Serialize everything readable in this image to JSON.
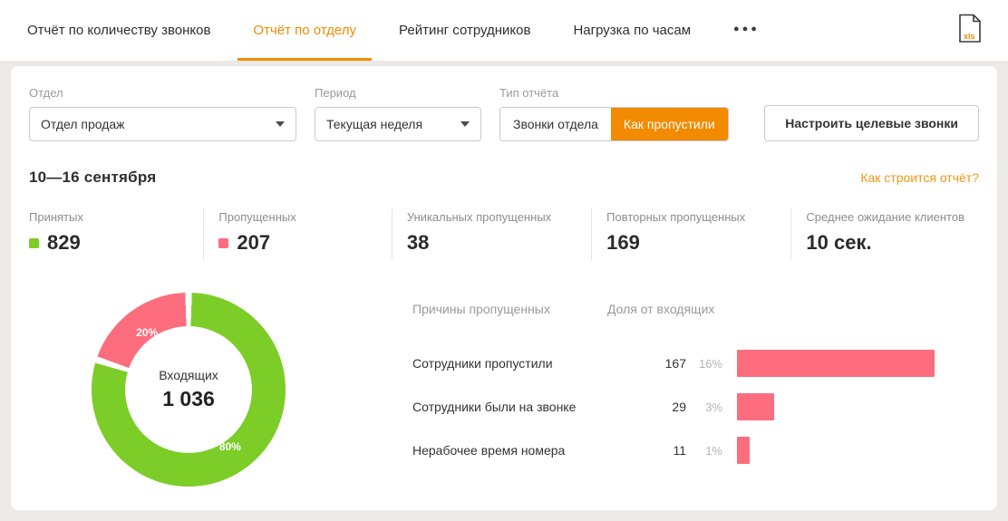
{
  "colors": {
    "accent": "#f28b00",
    "green": "#7ccd27",
    "pink": "#fd6d7d",
    "page_bg": "#ece9e6"
  },
  "header": {
    "tabs": [
      {
        "label": "Отчёт по количеству звонков",
        "active": false
      },
      {
        "label": "Отчёт по отделу",
        "active": true
      },
      {
        "label": "Рейтинг сотрудников",
        "active": false
      },
      {
        "label": "Нагрузка по часам",
        "active": false
      }
    ],
    "more_label": "●●●",
    "export_ext": "xls"
  },
  "filters": {
    "department": {
      "label": "Отдел",
      "value": "Отдел продаж"
    },
    "period": {
      "label": "Период",
      "value": "Текущая неделя"
    },
    "report_type": {
      "label": "Тип отчёта",
      "options": [
        {
          "label": "Звонки отдела",
          "active": false
        },
        {
          "label": "Как пропустили",
          "active": true
        }
      ]
    },
    "configure_button": "Настроить целевые звонки"
  },
  "report": {
    "date_range": "10—16 сентября",
    "how_link": "Как строится отчёт?"
  },
  "stats": [
    {
      "label": "Принятых",
      "value": "829",
      "marker_color": "#7ccd27"
    },
    {
      "label": "Пропущенных",
      "value": "207",
      "marker_color": "#fd6d7d"
    },
    {
      "label": "Уникальных пропущенных",
      "value": "38"
    },
    {
      "label": "Повторных пропущенных",
      "value": "169"
    },
    {
      "label": "Среднее ожидание клиентов",
      "value": "10 сек."
    }
  ],
  "chart_data": [
    {
      "type": "pie",
      "title": "Входящих",
      "center_label": "Входящих",
      "center_value": "1 036",
      "total": 1036,
      "slices": [
        {
          "label": "Принятых",
          "value": 829,
          "percent": 80,
          "display": "80%",
          "color": "#7ccd27"
        },
        {
          "label": "Пропущенных",
          "value": 207,
          "percent": 20,
          "display": "20%",
          "color": "#fd6d7d"
        }
      ]
    },
    {
      "type": "bar",
      "header_left": "Причины пропущенных",
      "header_right": "Доля от входящих",
      "bar_color": "#fd6d7d",
      "rows": [
        {
          "label": "Сотрудники пропустили",
          "count": "167",
          "percent": 16,
          "percent_display": "16%"
        },
        {
          "label": "Сотрудники были на звонке",
          "count": "29",
          "percent": 3,
          "percent_display": "3%"
        },
        {
          "label": "Нерабочее время номера",
          "count": "11",
          "percent": 1,
          "percent_display": "1%"
        }
      ]
    }
  ]
}
